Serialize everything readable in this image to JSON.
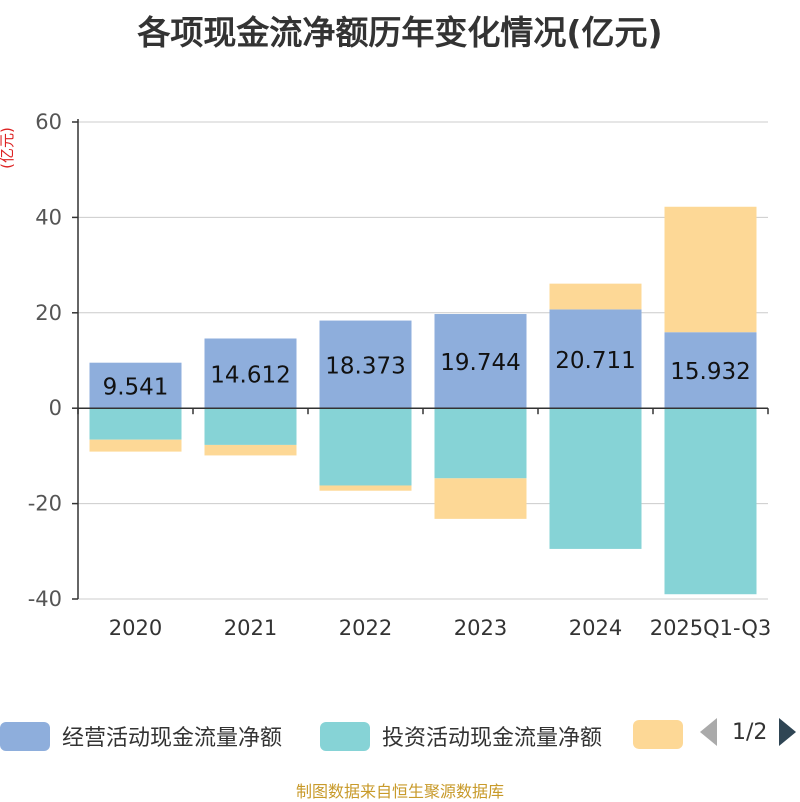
{
  "chart_data": {
    "type": "bar",
    "stacked": true,
    "title": "各项现金流净额历年变化情况(亿元)",
    "ylabel": "(亿元)",
    "ylim": [
      -40,
      60
    ],
    "yticks": [
      60,
      40,
      20,
      0,
      -20,
      -40
    ],
    "categories": [
      "2020",
      "2021",
      "2022",
      "2023",
      "2024",
      "2025Q1-Q3"
    ],
    "series": [
      {
        "name": "经营活动现金流量净额",
        "color": "#8eaedc",
        "values": [
          9.541,
          14.612,
          18.373,
          19.744,
          20.711,
          15.932
        ],
        "labels": [
          "9.541",
          "14.612",
          "18.373",
          "19.744",
          "20.711",
          "15.932"
        ]
      },
      {
        "name": "投资活动现金流量净额",
        "color": "#86d3d6",
        "values": [
          -6.6,
          -7.7,
          -16.2,
          -14.7,
          -29.5,
          -39.0
        ]
      },
      {
        "name": "",
        "color": "#fdd896",
        "values": [
          -2.5,
          -2.2,
          -1.1,
          -8.5,
          5.4,
          26.3
        ]
      }
    ],
    "legend": {
      "position": "bottom",
      "page": "1/2"
    },
    "source": "制图数据来自恒生聚源数据库"
  }
}
